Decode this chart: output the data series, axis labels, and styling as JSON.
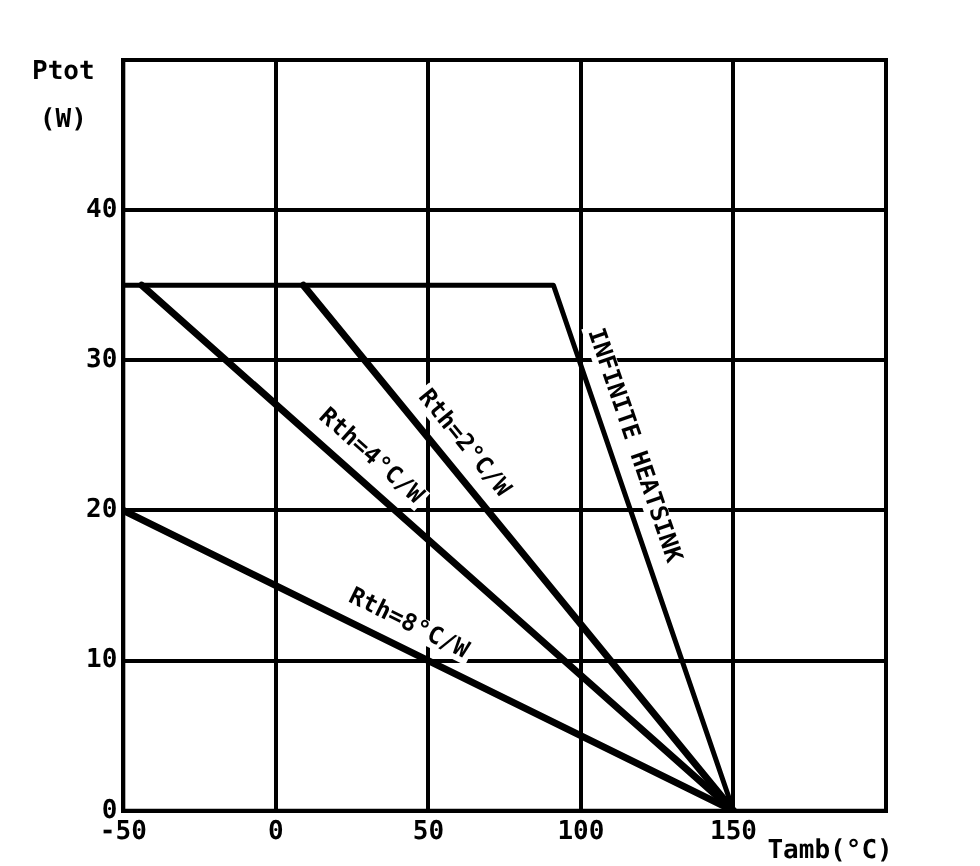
{
  "chart_data": {
    "type": "line",
    "xlabel": "Tamb(°C)",
    "ylabel": "Ptot (W)",
    "xlim": [
      -50,
      200
    ],
    "xticks": [
      -50,
      0,
      50,
      100,
      150,
      {
        "value": 200,
        "label": null
      }
    ],
    "ylim": [
      0,
      50
    ],
    "yticks": [
      0,
      10,
      20,
      30,
      40,
      {
        "value": 50,
        "label": null
      }
    ],
    "grid": true,
    "legend": false,
    "marker": "none",
    "line_style": "solid",
    "series": [
      {
        "name": "INFINITE HEATSINK",
        "color": "#000000",
        "x": [
          -50,
          91,
          150
        ],
        "values": [
          35,
          35,
          0
        ]
      },
      {
        "name": "Rth=2°C/W",
        "color": "#000000",
        "x": [
          9,
          150
        ],
        "values": [
          35,
          0
        ]
      },
      {
        "name": "Rth=4°C/W",
        "color": "#000000",
        "x": [
          -44,
          150
        ],
        "values": [
          35,
          0
        ]
      },
      {
        "name": "Rth=8°C/W",
        "color": "#000000",
        "x": [
          -50,
          150
        ],
        "values": [
          20,
          0
        ]
      }
    ]
  }
}
